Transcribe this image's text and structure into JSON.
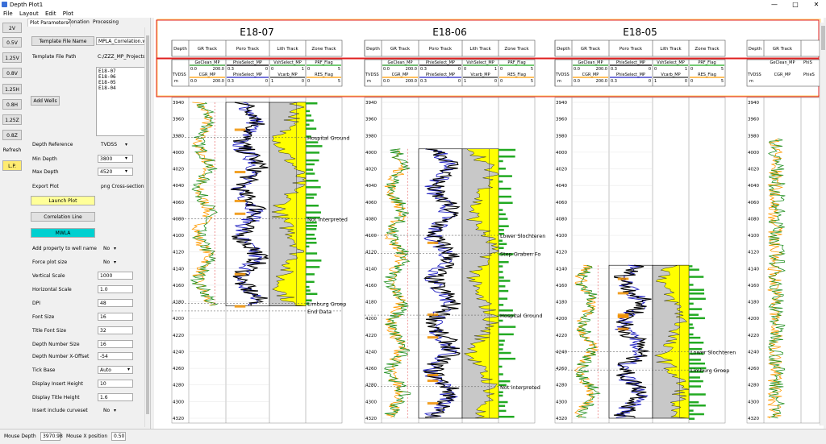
{
  "window": {
    "title": "Depth Plot1",
    "minimize": "—",
    "maximize": "□",
    "close": "✕"
  },
  "menu": [
    {
      "label": "File"
    },
    {
      "label": "Layout"
    },
    {
      "label": "Edit"
    },
    {
      "label": "Plot"
    }
  ],
  "left_buttons": [
    {
      "label": "2V",
      "active": false
    },
    {
      "label": "0.5V",
      "active": false
    },
    {
      "label": "1.25V",
      "active": false
    },
    {
      "label": "0.8V",
      "active": false
    },
    {
      "label": "1.25H",
      "active": false
    },
    {
      "label": "0.8H",
      "active": false
    },
    {
      "label": "1.25Z",
      "active": false
    },
    {
      "label": "0.8Z",
      "active": false
    },
    {
      "label": "Refresh",
      "active": false
    },
    {
      "label": "L.P.",
      "active": true
    }
  ],
  "tabs": [
    {
      "label": "Plot Parameters",
      "active": true
    },
    {
      "label": "Zonation",
      "active": false
    },
    {
      "label": "Processing",
      "active": false
    }
  ],
  "params": {
    "template_btn": "Template File Name",
    "template_value": "MPLA_Correlation.w",
    "template_path_label": "Template File Path",
    "template_path_value": "C:/ZZZ_MP_Projects",
    "wells": [
      "E18-07",
      "E18-06",
      "E18-05",
      "E18-04"
    ],
    "add_wells": "Add Wells",
    "depth_ref_label": "Depth Reference",
    "depth_ref_value": "TVDSS",
    "min_depth_label": "Min Depth",
    "min_depth_value": "3800",
    "max_depth_label": "Max Depth",
    "max_depth_value": "4520",
    "export_label": "Export Plot",
    "export_value": "png Cross-section",
    "launch_btn": "Launch Plot",
    "correlation_btn": "Correlation Line",
    "mwla_btn": "MWLA",
    "add_prop_label": "Add property to well name",
    "add_prop_value": "No",
    "force_label": "Force plot size",
    "force_value": "No",
    "vscale_label": "Vertical Scale",
    "vscale_value": "1000",
    "hscale_label": "Horizontal Scale",
    "hscale_value": "1.0",
    "dpi_label": "DPI",
    "dpi_value": "48",
    "font_label": "Font Size",
    "font_value": "16",
    "title_font_label": "Title Font Size",
    "title_font_value": "32",
    "depth_num_label": "Depth Number Size",
    "depth_num_value": "16",
    "depth_off_label": "Depth Number X-Offset",
    "depth_off_value": "-54",
    "tick_label": "Tick Base",
    "tick_value": "Auto",
    "insert_h_label": "Display Insert Height",
    "insert_h_value": "10",
    "title_h_label": "Display Title Height",
    "title_h_value": "1.6",
    "curveset_label": "Insert include curveset",
    "curveset_value": "No"
  },
  "status": {
    "mouse_depth_label": "Mouse Depth",
    "mouse_depth_value": "3970.98",
    "mouse_x_label": "Mouse X position",
    "mouse_x_value": "0.50"
  },
  "plot": {
    "well_titles": [
      "E18-07",
      "E18-06",
      "E18-05"
    ],
    "track_headers": [
      "Depth",
      "GR Track",
      "Poro Track",
      "Lith Track",
      "Zone Track"
    ],
    "header_row1": [
      "",
      "GeClean_MP",
      "PhieSelect_MP",
      "VshSelect_MP",
      "PRF_Flag"
    ],
    "scale_row1": {
      "gr": [
        "0.0",
        "200.0"
      ],
      "poro": [
        "0.3",
        "0"
      ],
      "lith": [
        "0",
        "1"
      ],
      "zone": [
        "0",
        "5"
      ]
    },
    "header_row2": [
      "TVDSS",
      "CGR_MP",
      "PhieSelect_MP",
      "Vcarb_MP",
      "RES_Flag"
    ],
    "scale_row2": {
      "gr": [
        "0.0",
        "200.0"
      ],
      "poro": [
        "0.3",
        "0"
      ],
      "lith": [
        "1",
        "0"
      ],
      "zone": [
        "0",
        "5"
      ]
    },
    "unit": "m",
    "extra_header": [
      "Depth",
      "GR Track"
    ],
    "extra_row1": [
      "GeClean_MP",
      "PhiS"
    ],
    "extra_row2": [
      "CGR_MP",
      "PhieS"
    ],
    "depth_ticks": [
      "3940",
      "3960",
      "3980",
      "4000",
      "4020",
      "4040",
      "4060",
      "4080",
      "4100",
      "4120",
      "4140",
      "4160",
      "4180",
      "4200",
      "4220",
      "4240",
      "4260",
      "4280",
      "4300",
      "4320"
    ],
    "well1_zones": [
      {
        "label": "Hospital Ground",
        "depth": 3982
      },
      {
        "label": "Not interpreted",
        "depth": 4080
      },
      {
        "label": "Limburg Groep",
        "depth": 4182
      },
      {
        "label": "End Data",
        "depth": 4191
      }
    ],
    "well2_zones": [
      {
        "label": "Lower Slochteren",
        "depth": 4100
      },
      {
        "label": "Step Graben Fo",
        "depth": 4122
      },
      {
        "label": "Hospital Ground",
        "depth": 4196
      },
      {
        "label": "Not interpreted",
        "depth": 4282
      }
    ],
    "well3_zones": [
      {
        "label": "Lower Slochteren",
        "depth": 4240
      },
      {
        "label": "Limburg Groep",
        "depth": 4262
      }
    ],
    "well1_range": [
      3940,
      4185
    ],
    "well2_range": [
      3996,
      4330
    ],
    "well3_range": [
      4136,
      4330
    ],
    "colors": {
      "gr": "#1f8f1f",
      "cgr": "#ff9a00",
      "poro": "#000000",
      "phie": "#2020c0",
      "lith_fill": "#c8c8c8",
      "sand": "#ffff00",
      "header_border": "#e02020",
      "zone_green": "#22aa22"
    }
  }
}
